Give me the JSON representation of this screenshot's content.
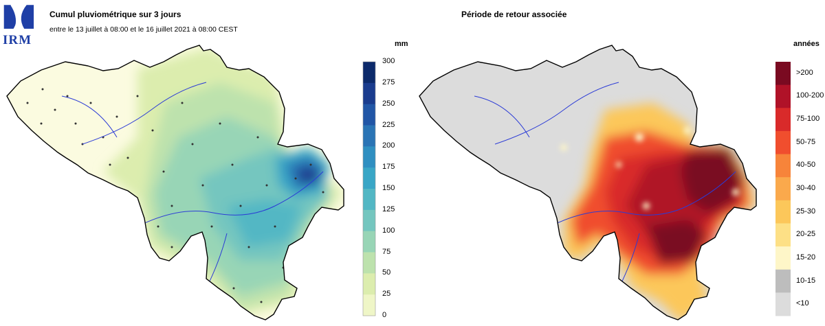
{
  "header": {
    "logo_text": "IRM",
    "left_title": "Cumul pluviométrique sur 3 jours",
    "left_subtitle": "entre le 13 juillet à 08:00 et le 16 juillet 2021 à 08:00 CEST",
    "right_title": "Période de retour associée"
  },
  "left_legend": {
    "unit": "mm",
    "ticks": [
      "300",
      "275",
      "250",
      "225",
      "200",
      "175",
      "150",
      "125",
      "100",
      "75",
      "50",
      "25",
      "0"
    ],
    "colors": [
      "#0c2a6b",
      "#1a3c8e",
      "#2156a6",
      "#2a74b5",
      "#2f8fc1",
      "#39a6c6",
      "#52b7c4",
      "#74c6bf",
      "#98d5b6",
      "#bde2ad",
      "#dcedae",
      "#eff6c7",
      "#fbfbe0"
    ]
  },
  "right_legend": {
    "unit": "années",
    "labels": [
      ">200",
      "100-200",
      "75-100",
      "50-75",
      "40-50",
      "30-40",
      "25-30",
      "20-25",
      "15-20",
      "10-15",
      "<10"
    ],
    "colors": [
      "#7a0a21",
      "#b01228",
      "#d92a2a",
      "#f04e2e",
      "#f7843a",
      "#faa94c",
      "#fcc75a",
      "#fde086",
      "#fef6c8",
      "#bdbdbd",
      "#dcdcdc"
    ]
  }
}
